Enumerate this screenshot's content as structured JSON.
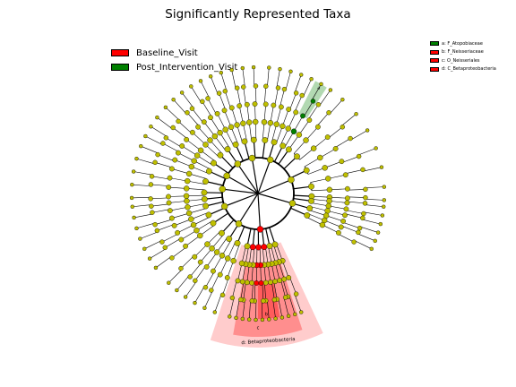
{
  "chart_data": {
    "type": "cladogram",
    "title": "Significantly Represented Taxa",
    "legend": [
      {
        "label": "Baseline_Visit",
        "color": "#ff0000"
      },
      {
        "label": "Post_Intervention_Visit",
        "color": "#008000"
      }
    ],
    "clade_legend": [
      {
        "label": "a: F_Atopobiaceae",
        "color": "#008000"
      },
      {
        "label": "b: F_Neisseriaceae",
        "color": "#ff0000"
      },
      {
        "label": "c: O_Neisseriales",
        "color": "#ff0000"
      },
      {
        "label": "d: C_Betaproteobacteria",
        "color": "#ff0000"
      }
    ],
    "highlighted_clades": [
      {
        "label": "a",
        "group": "Post_Intervention_Visit",
        "color": "#008000"
      },
      {
        "label": "b",
        "group": "Baseline_Visit",
        "color": "#ff0000"
      },
      {
        "label": "c",
        "group": "Baseline_Visit",
        "color": "#ff0000"
      },
      {
        "label": "d",
        "group": "Baseline_Visit",
        "color": "#ff0000"
      }
    ],
    "sector_labels": [
      "d: Betaproteobacteria"
    ],
    "node_color": "#bfbf00",
    "legend_position": "top-left"
  }
}
